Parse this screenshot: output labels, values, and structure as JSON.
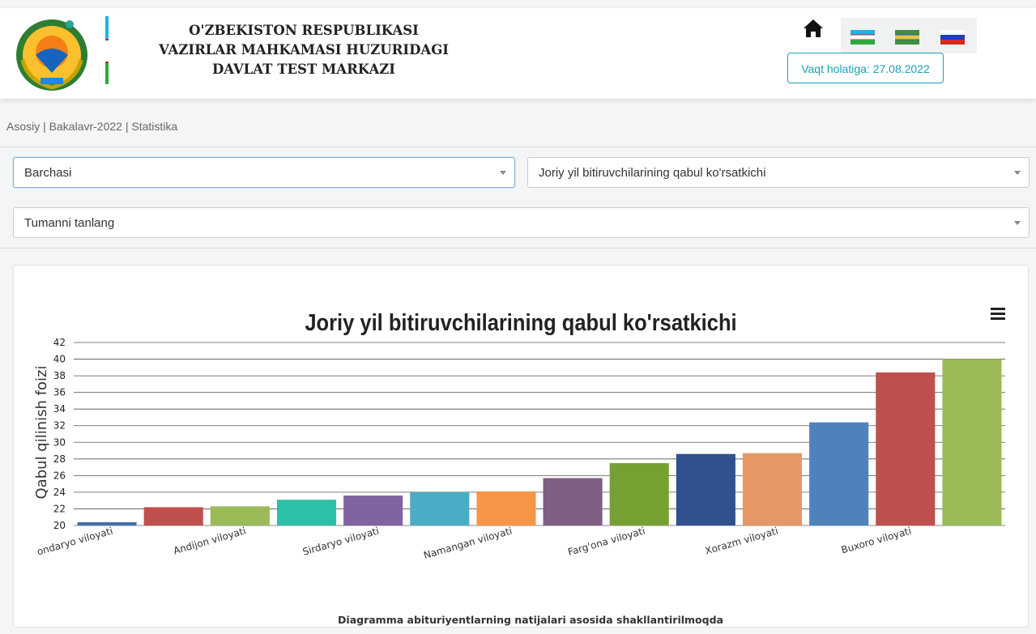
{
  "header": {
    "org_line1": "O'ZBEKISTON RESPUBLIKASI",
    "org_line2": "VAZIRLAR MAHKAMASI HUZURIDAGI",
    "org_line3": "DAVLAT TEST MARKAZI",
    "date_button": "Vaqt holatiga: 27.08.2022",
    "icons": [
      "emblem-icon",
      "home-icon",
      "flag-uz-latin-icon",
      "flag-uz-cyrillic-icon",
      "flag-ru-icon"
    ]
  },
  "breadcrumb": {
    "item1": "Asosiy",
    "item2": "Bakalavr-2022",
    "item3": "Statistika",
    "separator": " | "
  },
  "filters": {
    "select1": "Barchasi",
    "select2": "Joriy yil bitiruvchilarining qabul ko'rsatkichi",
    "select3": "Tumanni tanlang"
  },
  "chart_data": {
    "type": "bar",
    "title": "Joriy yil bitiruvchilarining qabul ko'rsatkichi",
    "ylabel": "Qabul qilinish foizi",
    "xlabel": "",
    "ylim": [
      20,
      42
    ],
    "yticks": [
      20,
      22,
      24,
      26,
      28,
      30,
      32,
      34,
      36,
      38,
      40,
      42
    ],
    "grid": true,
    "categories": [
      "Surxondaryo viloyati",
      "",
      "Andijon viloyati",
      "",
      "Sirdaryo viloyati",
      "",
      "Namangan viloyati",
      "",
      "Farg'ona viloyati",
      "",
      "Xorazm viloyati",
      "",
      "Buxoro viloyati",
      ""
    ],
    "visible_labels": [
      "ondaryo viloyati",
      "Andijon viloyati",
      "Sirdaryo viloyati",
      "Namangan viloyati",
      "Farg'ona viloyati",
      "Xorazm viloyati",
      "Buxoro viloyati"
    ],
    "values": [
      20.4,
      22.2,
      22.3,
      23.1,
      23.6,
      24.0,
      24.1,
      25.7,
      27.5,
      28.6,
      28.7,
      32.4,
      38.4,
      40.0
    ],
    "colors": [
      "#4572A7",
      "#C0504D",
      "#9BBB59",
      "#2DC0A8",
      "#8064A2",
      "#4BACC6",
      "#F79646",
      "#7F5F82",
      "#77A033",
      "#2F528F",
      "#E59866",
      "#4F81BD",
      "#C0504D",
      "#9BBB59"
    ],
    "footnote": "Diagramma abituriyentlarning natijalari asosida shakllantirilmoqda"
  }
}
